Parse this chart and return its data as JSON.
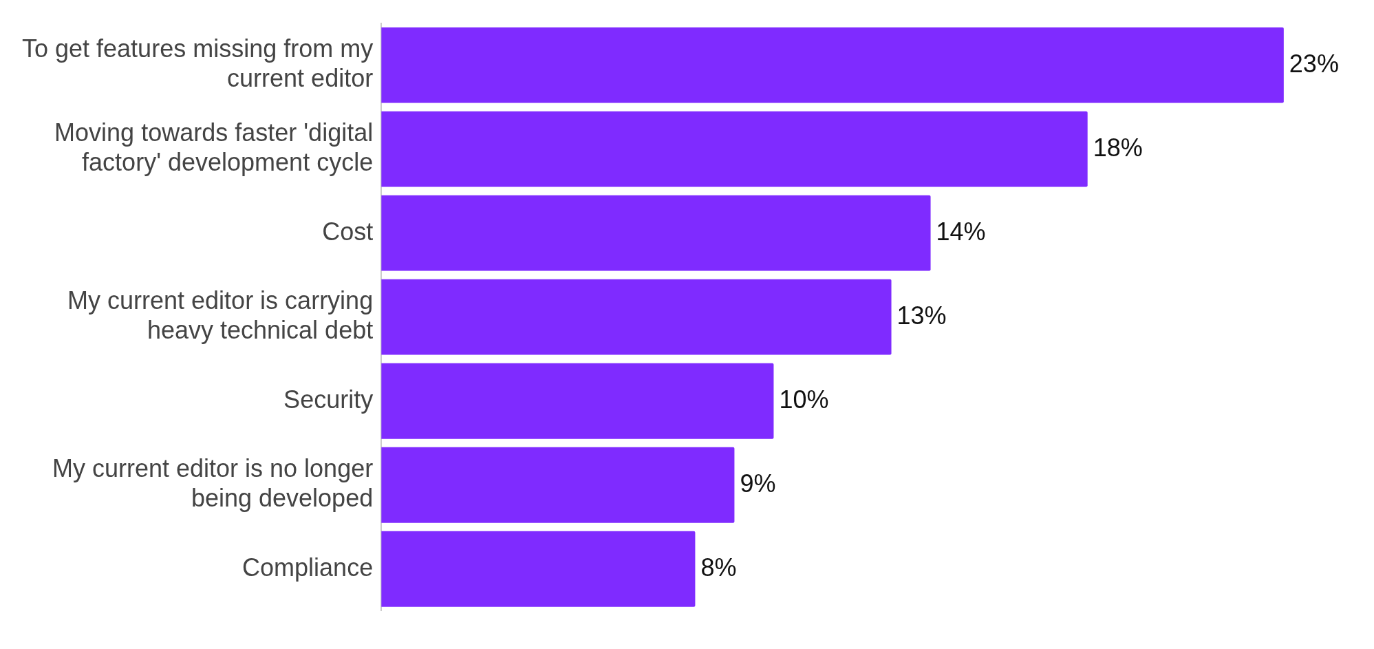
{
  "chart_data": {
    "type": "bar",
    "orientation": "horizontal",
    "categories": [
      "To get features missing from my current editor",
      "Moving towards faster 'digital factory' development cycle",
      "Cost",
      "My current editor is carrying heavy technical debt",
      "Security",
      "My current editor is no longer being developed",
      "Compliance"
    ],
    "values": [
      23,
      18,
      14,
      13,
      10,
      9,
      8
    ],
    "color": "#7f2bff",
    "value_labels": [
      "23%",
      "18%",
      "14%",
      "13%",
      "10%",
      "9%",
      "8%"
    ]
  }
}
